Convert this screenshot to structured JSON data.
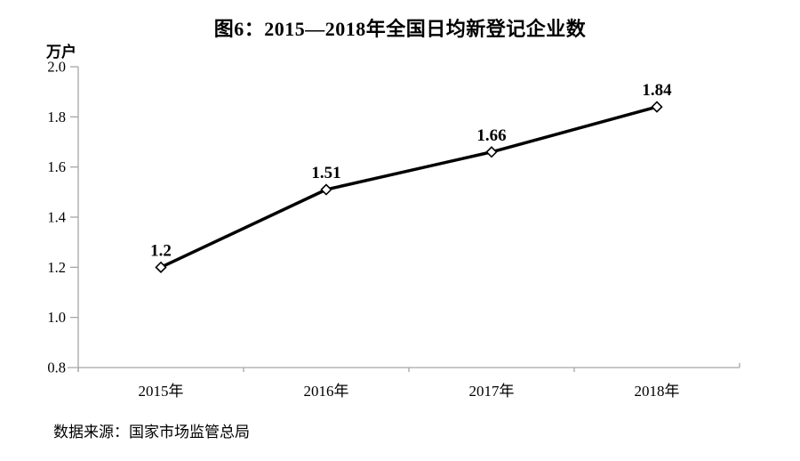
{
  "chart_data": {
    "type": "line",
    "title": "图6：2015—2018年全国日均新登记企业数",
    "categories": [
      "2015年",
      "2016年",
      "2017年",
      "2018年"
    ],
    "values": [
      1.2,
      1.51,
      1.66,
      1.84
    ],
    "data_labels": [
      "1.2",
      "1.51",
      "1.66",
      "1.84"
    ],
    "series_name": "全国日均新登记企业数",
    "xlabel": "",
    "ylabel": "万户",
    "ylim": [
      0.8,
      2.0
    ],
    "y_tick_labels": [
      "2.0",
      "1.8",
      "1.6",
      "1.4",
      "1.2",
      "1.0",
      "0.8"
    ],
    "grid": false,
    "legend": "none",
    "line_color": "#000000",
    "marker_style": "open-diamond",
    "marker_fill": "#ffffff",
    "axis_color": "#a6a6a6",
    "text_color": "#000000",
    "background": "#ffffff",
    "source_note": "数据来源：国家市场监管总局"
  }
}
